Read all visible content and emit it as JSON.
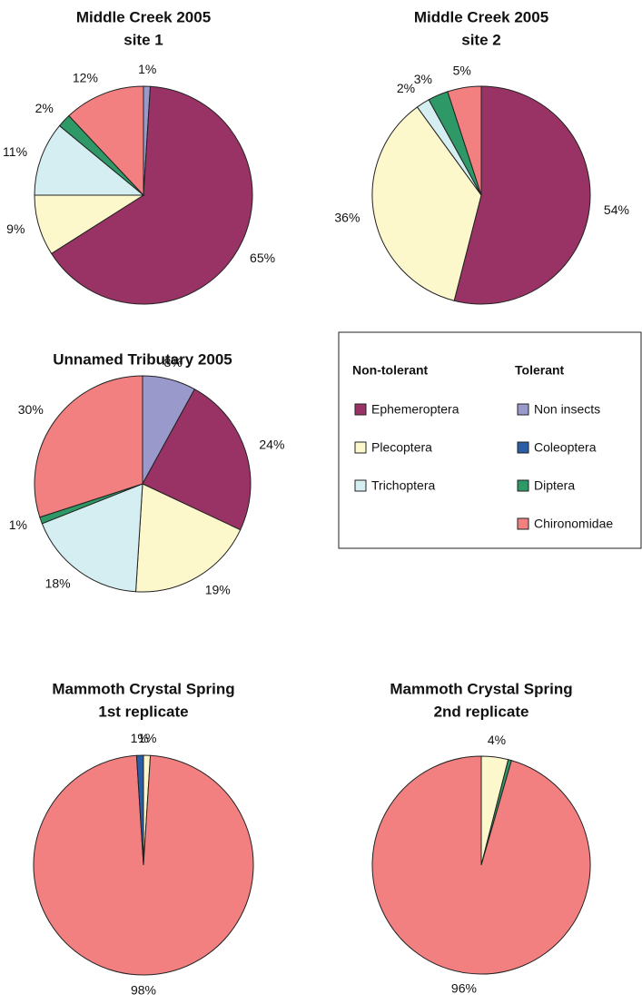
{
  "chart_data": [
    {
      "type": "pie",
      "title": "Middle Creek 2005",
      "subtitle": "site 1",
      "categories": [
        "Non insects",
        "Ephemeroptera",
        "Plecoptera",
        "Trichoptera",
        "Diptera",
        "Chironomidae"
      ],
      "values": [
        1,
        65,
        9,
        11,
        2,
        12
      ],
      "value_labels": [
        "1%",
        "65%",
        "9%",
        "11%",
        "2%",
        "12%"
      ]
    },
    {
      "type": "pie",
      "title": "Middle Creek 2005",
      "subtitle": "site 2",
      "categories": [
        "Ephemeroptera",
        "Plecoptera",
        "Trichoptera",
        "Diptera",
        "Chironomidae"
      ],
      "values": [
        54,
        36,
        2,
        3,
        5
      ],
      "value_labels": [
        "54%",
        "36%",
        "2%",
        "3%",
        "5%"
      ]
    },
    {
      "type": "pie",
      "title": "Unnamed Tributary 2005",
      "categories": [
        "Non insects",
        "Ephemeroptera",
        "Plecoptera",
        "Trichoptera",
        "Diptera",
        "Chironomidae"
      ],
      "values": [
        8,
        24,
        19,
        18,
        1,
        30
      ],
      "value_labels": [
        "8%",
        "24%",
        "19%",
        "18%",
        "1%",
        "30%"
      ]
    },
    {
      "type": "pie",
      "title": "Mammoth Crystal Spring",
      "subtitle": "1st replicate",
      "categories": [
        "Plecoptera",
        "Chironomidae",
        "Coleoptera"
      ],
      "values": [
        1,
        98,
        1
      ],
      "value_labels": [
        "1%",
        "98%",
        "1%"
      ]
    },
    {
      "type": "pie",
      "title": "Mammoth Crystal Spring",
      "subtitle": "2nd replicate",
      "categories": [
        "Plecoptera",
        "Diptera",
        "Chironomidae"
      ],
      "values": [
        4,
        0.5,
        96
      ],
      "value_labels": [
        "4%",
        null,
        "96%"
      ]
    }
  ],
  "legend": {
    "groups": [
      {
        "title": "Non-tolerant",
        "entries": [
          {
            "name": "Ephemeroptera",
            "color": "#993366"
          },
          {
            "name": "Plecoptera",
            "color": "#fdf8cc"
          },
          {
            "name": "Trichoptera",
            "color": "#d5eef2"
          }
        ]
      },
      {
        "title": "Tolerant",
        "entries": [
          {
            "name": "Non insects",
            "color": "#9999cc"
          },
          {
            "name": "Coleoptera",
            "color": "#2b5ea7"
          },
          {
            "name": "Diptera",
            "color": "#2e9966"
          },
          {
            "name": "Chironomidae",
            "color": "#f38080"
          }
        ]
      }
    ]
  }
}
